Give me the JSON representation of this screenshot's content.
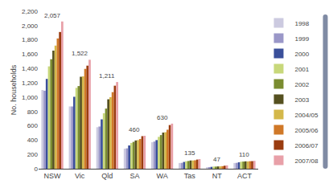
{
  "chart_data": {
    "type": "bar",
    "categories": [
      "NSW",
      "Vic",
      "Qld",
      "SA",
      "WA",
      "Tas",
      "NT",
      "ACT"
    ],
    "series": [
      {
        "name": "1998",
        "color": "#cccae0",
        "values": [
          1100,
          870,
          580,
          280,
          370,
          80,
          22,
          80
        ]
      },
      {
        "name": "1999",
        "color": "#9a97c8",
        "values": [
          1090,
          870,
          590,
          285,
          380,
          82,
          23,
          82
        ]
      },
      {
        "name": "2000",
        "color": "#3a4f9a",
        "values": [
          1255,
          1005,
          690,
          325,
          400,
          95,
          26,
          90
        ]
      },
      {
        "name": "2001",
        "color": "#c8d87a",
        "values": [
          1430,
          1130,
          775,
          360,
          445,
          105,
          30,
          98
        ]
      },
      {
        "name": "2002",
        "color": "#7a8c30",
        "values": [
          1530,
          1155,
          840,
          375,
          470,
          108,
          30,
          100
        ]
      },
      {
        "name": "2003",
        "color": "#555020",
        "values": [
          1650,
          1285,
          970,
          395,
          505,
          115,
          32,
          103
        ]
      },
      {
        "name": "2004/05",
        "color": "#d4b84a",
        "values": [
          1720,
          1290,
          1000,
          400,
          510,
          115,
          33,
          102
        ]
      },
      {
        "name": "2005/06",
        "color": "#d07828",
        "values": [
          1820,
          1395,
          1070,
          415,
          545,
          118,
          36,
          105
        ]
      },
      {
        "name": "2006/07",
        "color": "#9a3c10",
        "values": [
          1910,
          1440,
          1160,
          455,
          610,
          128,
          42,
          106
        ]
      },
      {
        "name": "2007/08",
        "color": "#e8a0a8",
        "values": [
          2057,
          1522,
          1211,
          460,
          630,
          135,
          47,
          110
        ]
      }
    ],
    "annotations": [
      {
        "category": "NSW",
        "value": 2057,
        "label": "2,057"
      },
      {
        "category": "Vic",
        "value": 1522,
        "label": "1,522"
      },
      {
        "category": "Qld",
        "value": 1211,
        "label": "1,211"
      },
      {
        "category": "SA",
        "value": 460
      },
      {
        "category": "WA",
        "value": 630
      },
      {
        "category": "Tas",
        "value": 135
      },
      {
        "category": "NT",
        "value": 47
      },
      {
        "category": "ACT",
        "value": 110
      }
    ],
    "ylabel": "No. households",
    "ylim": [
      0,
      2200
    ],
    "yticks": [
      0,
      200,
      400,
      600,
      800,
      {
        "value": 1000,
        "label": "1,000"
      },
      {
        "value": 1200,
        "label": "1,200"
      },
      {
        "value": 1400,
        "label": "1,400"
      },
      {
        "value": 1600,
        "label": "1,600"
      },
      {
        "value": 1800,
        "label": "1,800"
      },
      {
        "value": 2000,
        "label": "2,000"
      },
      {
        "value": 2200,
        "label": "2,200"
      }
    ],
    "grid": false,
    "legend": "upper right"
  }
}
